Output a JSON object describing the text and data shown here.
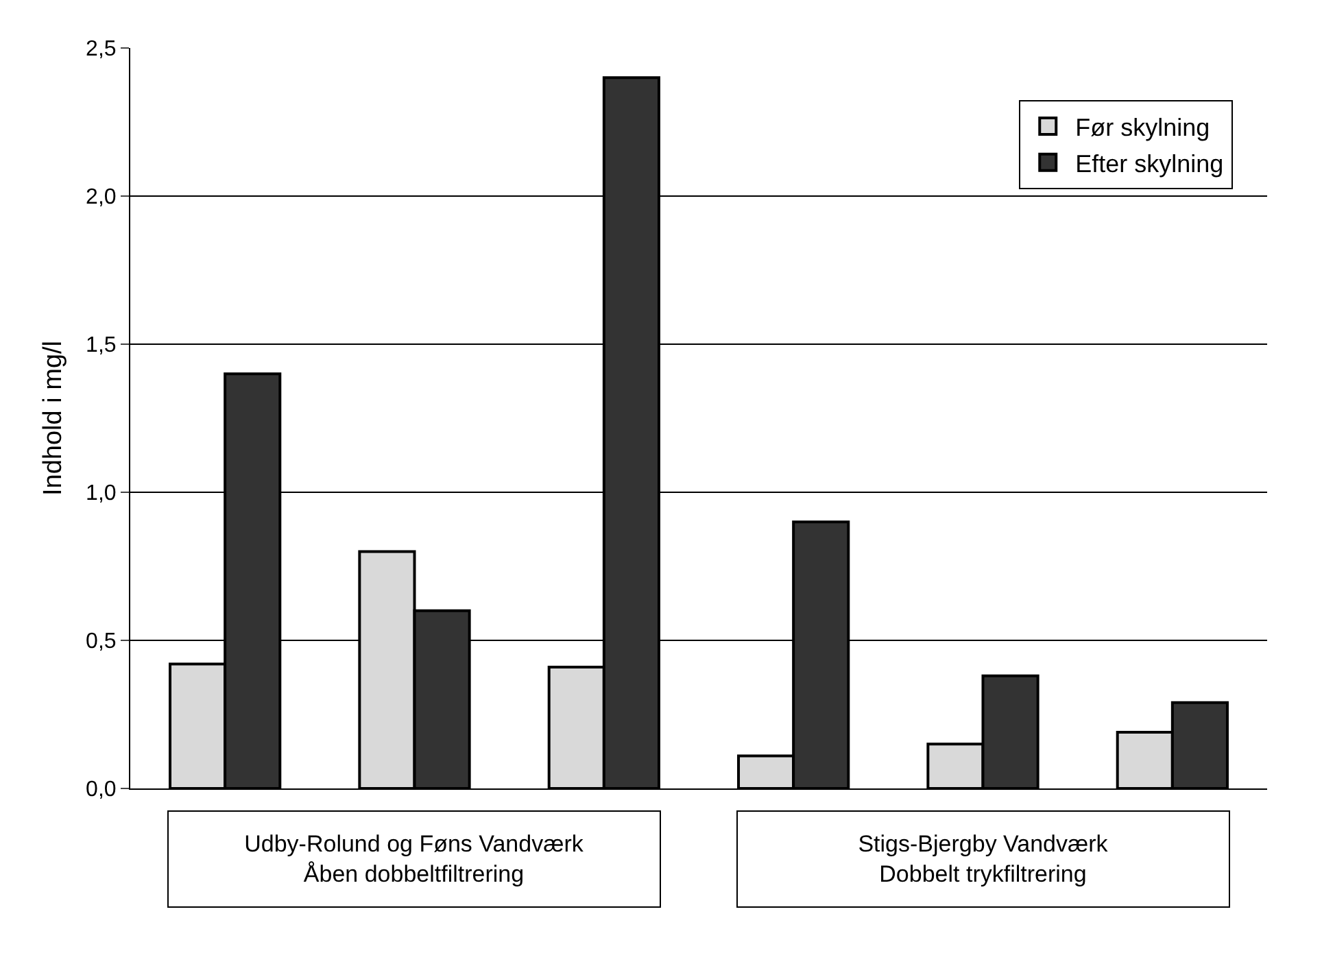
{
  "chart_data": {
    "type": "bar",
    "ylabel": "Indhold i mg/l",
    "categories": [
      null,
      null,
      null,
      null,
      null,
      null
    ],
    "series": [
      {
        "name": "Før skylning",
        "color": "#d9d9d9",
        "values": [
          0.42,
          0.8,
          0.41,
          0.11,
          0.15,
          0.19
        ]
      },
      {
        "name": "Efter skylning",
        "color": "#333333",
        "values": [
          1.4,
          0.6,
          2.4,
          0.9,
          0.38,
          0.29
        ]
      }
    ],
    "ylim": [
      0,
      2.5
    ],
    "yticks": [
      {
        "value": 0,
        "label": "0,0"
      },
      {
        "value": 0.5,
        "label": "0,5"
      },
      {
        "value": 1,
        "label": "1,0"
      },
      {
        "value": 1.5,
        "label": "1,5"
      },
      {
        "value": 2,
        "label": "2,0"
      },
      {
        "value": 2.5,
        "label": "2,5"
      }
    ],
    "annotations": [
      "Udby-Rolund og Føns Vandværk\nÅben dobbeltfiltrering",
      "Stigs-Bjergby Vandværk\nDobbelt trykfiltrering"
    ],
    "grid": "y",
    "legend": "top right"
  }
}
